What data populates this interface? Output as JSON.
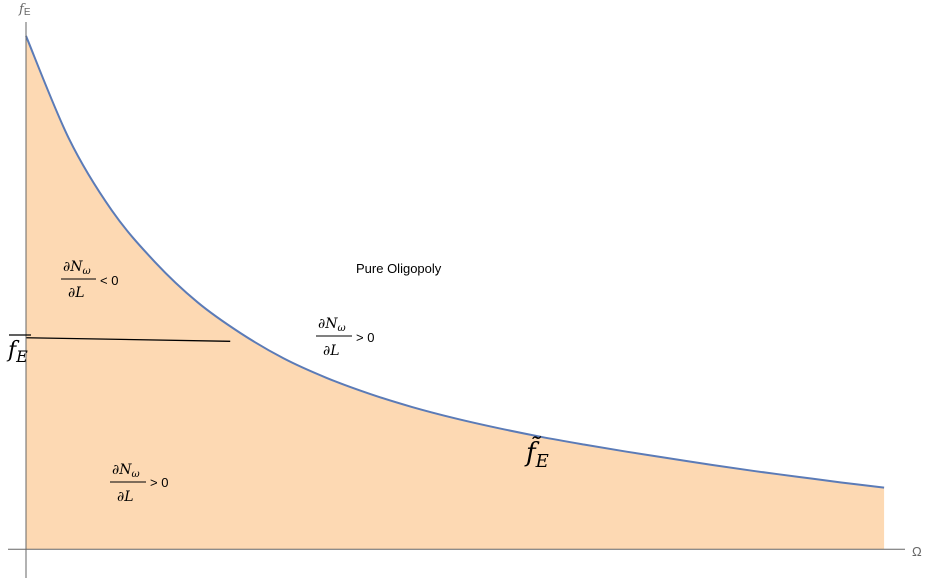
{
  "chart_data": {
    "type": "area",
    "title": "",
    "xlabel": "Ω",
    "ylabel": "f",
    "ylabel_sub": "E",
    "series": [
      {
        "name": "f̃_E",
        "x": [
          0,
          0.05,
          0.1,
          0.15,
          0.2,
          0.25,
          0.3,
          0.35,
          0.4,
          0.45,
          0.5,
          0.55,
          0.6,
          0.65,
          0.7,
          0.75,
          0.8,
          0.85,
          0.9,
          0.95,
          1.0
        ],
        "y": [
          1.0,
          0.8,
          0.66,
          0.56,
          0.481,
          0.421,
          0.372,
          0.334,
          0.303,
          0.277,
          0.255,
          0.236,
          0.219,
          0.204,
          0.19,
          0.177,
          0.164,
          0.152,
          0.141,
          0.13,
          0.12
        ]
      }
    ],
    "threshold": {
      "label": "f̄_E",
      "points": [
        [
          0,
          0.412
        ],
        [
          0.238,
          0.405
        ]
      ]
    },
    "xlim": [
      0,
      1.05
    ],
    "ylim": [
      -0.06,
      1.07
    ],
    "fill_color": "#fdd9b3",
    "line_color": "#5b7bb7",
    "axis_color": "#666666",
    "annotations": {
      "pure_oligopoly": "Pure Oligopoly",
      "upper_left": {
        "num": "∂N",
        "num_sub": "ω",
        "den": "∂L",
        "rel": "< 0"
      },
      "upper_right": {
        "num": "∂N",
        "num_sub": "ω",
        "den": "∂L",
        "rel": "> 0"
      },
      "lower_left": {
        "num": "∂N",
        "num_sub": "ω",
        "den": "∂L",
        "rel": "> 0"
      },
      "curve_label": {
        "base": "f̃",
        "sub": "E"
      }
    }
  }
}
